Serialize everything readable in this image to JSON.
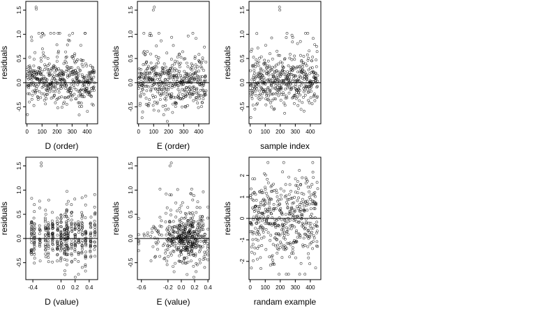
{
  "figure": {
    "point_color": "#000000",
    "panels_layout": "2 rows x 3 columns"
  },
  "chart_data": [
    {
      "type": "scatter",
      "title": "",
      "xlabel": "D (order)",
      "ylabel": "residuals",
      "xlim": [
        -8,
        470
      ],
      "ylim": [
        -0.85,
        1.68
      ],
      "xticks": [
        0,
        100,
        200,
        300,
        400
      ],
      "xtick_labels": [
        "0",
        "100",
        "200",
        "300",
        "400"
      ],
      "yticks": [
        -0.5,
        0.0,
        0.5,
        1.0,
        1.5
      ],
      "ytick_labels": [
        "-0.5",
        "0.0",
        "0.5",
        "1.0",
        "1.5"
      ],
      "reference_line_y": 0,
      "n_points": 450,
      "point_style": "open circle",
      "extreme_points": [
        {
          "x": 60,
          "y": 1.56
        },
        {
          "x": 62,
          "y": 1.52
        }
      ]
    },
    {
      "type": "scatter",
      "title": "",
      "xlabel": "E (order)",
      "ylabel": "residuals",
      "xlim": [
        -8,
        470
      ],
      "ylim": [
        -0.85,
        1.68
      ],
      "xticks": [
        0,
        100,
        200,
        300,
        400
      ],
      "xtick_labels": [
        "0",
        "100",
        "200",
        "300",
        "400"
      ],
      "yticks": [
        -0.5,
        0.0,
        0.5,
        1.0,
        1.5
      ],
      "ytick_labels": [
        "-0.5",
        "0.0",
        "0.5",
        "1.0",
        "1.5"
      ],
      "reference_line_y": 0,
      "n_points": 450,
      "point_style": "open circle",
      "extreme_points": [
        {
          "x": 105,
          "y": 1.56
        },
        {
          "x": 98,
          "y": 1.5
        }
      ]
    },
    {
      "type": "scatter",
      "title": "",
      "xlabel": "sample index",
      "ylabel": "residuals",
      "xlim": [
        -8,
        470
      ],
      "ylim": [
        -0.85,
        1.68
      ],
      "xticks": [
        0,
        100,
        200,
        300,
        400
      ],
      "xtick_labels": [
        "0",
        "100",
        "200",
        "300",
        "400"
      ],
      "yticks": [
        -0.5,
        0.0,
        0.5,
        1.0,
        1.5
      ],
      "ytick_labels": [
        "-0.5",
        "0.0",
        "0.5",
        "1.0",
        "1.5"
      ],
      "reference_line_y": 0,
      "n_points": 450,
      "point_style": "open circle",
      "extreme_points": [
        {
          "x": 195,
          "y": 1.56
        },
        {
          "x": 197,
          "y": 1.5
        }
      ]
    },
    {
      "type": "scatter",
      "title": "",
      "xlabel": "D (value)",
      "ylabel": "residuals",
      "xlim": [
        -0.5,
        0.52
      ],
      "ylim": [
        -0.85,
        1.68
      ],
      "xticks": [
        -0.4,
        0.0,
        0.2,
        0.4
      ],
      "xtick_labels": [
        "-0.4",
        "0.0",
        "0.2",
        "0.4"
      ],
      "yticks": [
        -0.5,
        0.0,
        0.5,
        1.0,
        1.5
      ],
      "ytick_labels": [
        "-0.5",
        "0.0",
        "0.5",
        "1.0",
        "1.5"
      ],
      "reference_line_y": 0,
      "n_points": 450,
      "point_style": "open circle",
      "extreme_points": [
        {
          "x": -0.28,
          "y": 1.56
        },
        {
          "x": -0.28,
          "y": 1.5
        }
      ]
    },
    {
      "type": "scatter",
      "title": "",
      "xlabel": "E (value)",
      "ylabel": "residuals",
      "xlim": [
        -0.66,
        0.42
      ],
      "ylim": [
        -0.85,
        1.68
      ],
      "xticks": [
        -0.6,
        -0.2,
        0.0,
        0.2,
        0.4
      ],
      "xtick_labels": [
        "-0.6",
        "-0.2",
        "0.0",
        "0.2",
        "0.4"
      ],
      "yticks": [
        -0.5,
        0.0,
        0.5,
        1.0,
        1.5
      ],
      "ytick_labels": [
        "-0.5",
        "0.0",
        "0.5",
        "1.0",
        "1.5"
      ],
      "reference_line_y": 0,
      "n_points": 450,
      "point_style": "open circle",
      "extreme_points": [
        {
          "x": -0.15,
          "y": 1.56
        },
        {
          "x": -0.17,
          "y": 1.5
        }
      ]
    },
    {
      "type": "scatter",
      "title": "",
      "xlabel": "randam example",
      "ylabel": "residuals",
      "xlim": [
        -8,
        470
      ],
      "ylim": [
        -2.85,
        2.85
      ],
      "xticks": [
        0,
        100,
        200,
        300,
        400
      ],
      "xtick_labels": [
        "0",
        "100",
        "200",
        "300",
        "400"
      ],
      "yticks": [
        -2,
        -1,
        0,
        1,
        2
      ],
      "ytick_labels": [
        "-2",
        "-1",
        "0",
        "1",
        "2"
      ],
      "reference_line_y": 0,
      "n_points": 450,
      "point_style": "open circle",
      "extreme_points": []
    }
  ]
}
